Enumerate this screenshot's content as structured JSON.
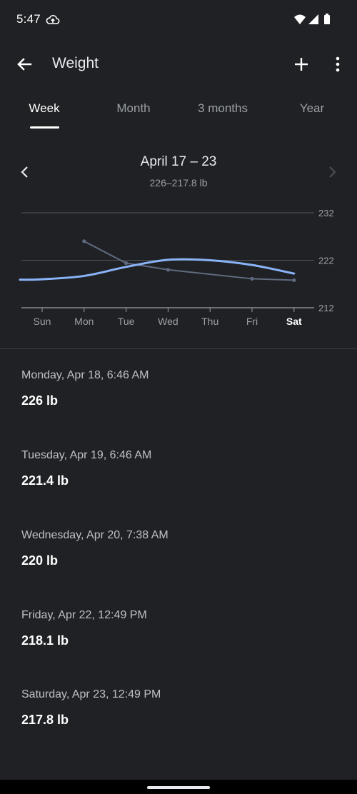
{
  "status_bar": {
    "time": "5:47",
    "icons": [
      "cloud-upload-icon",
      "wifi-icon",
      "signal-icon",
      "battery-icon"
    ]
  },
  "app_bar": {
    "title": "Weight",
    "back_icon": "arrow-back-icon",
    "add_icon": "add-icon",
    "more_icon": "more-vert-icon"
  },
  "tabs": [
    {
      "label": "Week",
      "active": true
    },
    {
      "label": "Month",
      "active": false
    },
    {
      "label": "3 months",
      "active": false
    },
    {
      "label": "Year",
      "active": false
    }
  ],
  "period": {
    "title": "April 17 – 23",
    "range": "226–217.8 lb",
    "prev_icon": "chevron-left-icon",
    "next_icon": "chevron-right-icon"
  },
  "chart_data": {
    "type": "line",
    "categories": [
      "Sun",
      "Mon",
      "Tue",
      "Wed",
      "Thu",
      "Fri",
      "Sat"
    ],
    "highlighted_category": "Sat",
    "y_ticks": [
      "232",
      "222",
      "212"
    ],
    "ylim": [
      212,
      232
    ],
    "grid": true,
    "series": [
      {
        "kind": "measurements",
        "color": "#5f6b80",
        "points": [
          {
            "x": "Mon",
            "y": 226
          },
          {
            "x": "Tue",
            "y": 221.4
          },
          {
            "x": "Wed",
            "y": 220
          },
          {
            "x": "Fri",
            "y": 218.1
          },
          {
            "x": "Sat",
            "y": 217.8
          }
        ]
      },
      {
        "kind": "trend",
        "color": "#8ab4f8",
        "points": [
          {
            "x": "Sun",
            "y": 218
          },
          {
            "x": "Mon",
            "y": 218.7
          },
          {
            "x": "Tue",
            "y": 220.6
          },
          {
            "x": "Wed",
            "y": 222.1
          },
          {
            "x": "Thu",
            "y": 222
          },
          {
            "x": "Fri",
            "y": 221
          },
          {
            "x": "Sat",
            "y": 219.2
          }
        ]
      }
    ]
  },
  "entries": [
    {
      "date": "Monday, Apr 18, 6:46 AM",
      "value": "226 lb"
    },
    {
      "date": "Tuesday, Apr 19, 6:46 AM",
      "value": "221.4 lb"
    },
    {
      "date": "Wednesday, Apr 20, 7:38 AM",
      "value": "220 lb"
    },
    {
      "date": "Friday, Apr 22, 12:49 PM",
      "value": "218.1 lb"
    },
    {
      "date": "Saturday, Apr 23, 12:49 PM",
      "value": "217.8 lb"
    }
  ]
}
